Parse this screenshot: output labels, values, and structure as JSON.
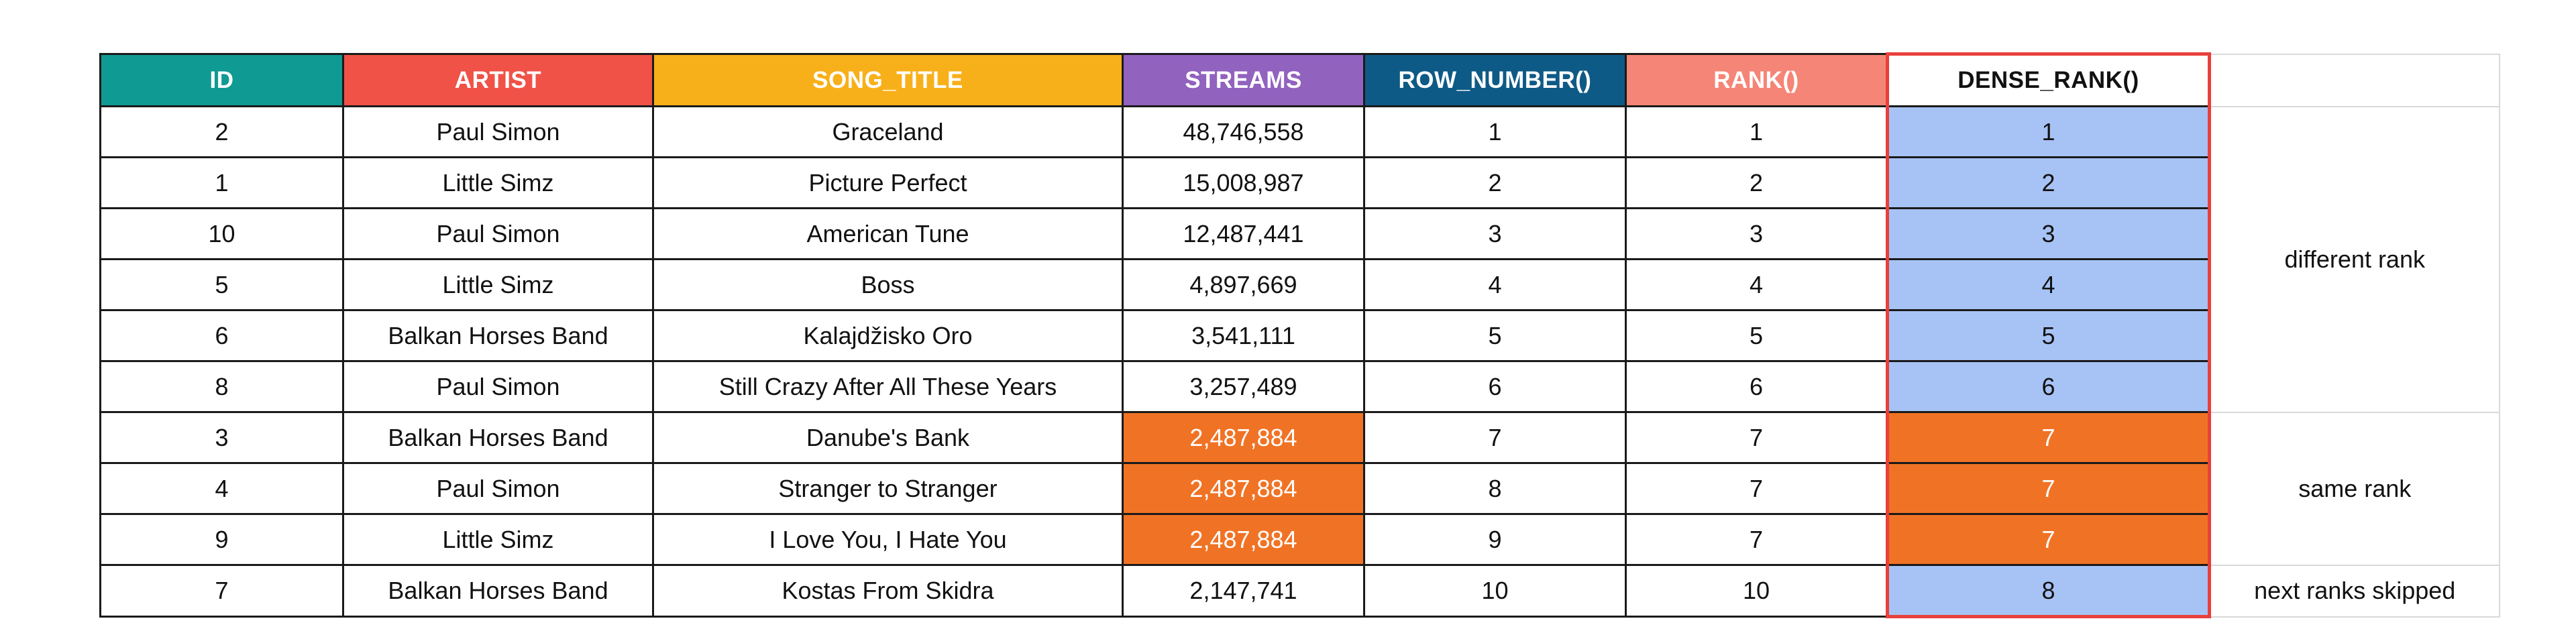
{
  "headers": {
    "id": "ID",
    "artist": "ARTIST",
    "song_title": "SONG_TITLE",
    "streams": "STREAMS",
    "row_number": "ROW_NUMBER()",
    "rank": "RANK()",
    "dense_rank": "DENSE_RANK()"
  },
  "rows": [
    {
      "id": "2",
      "artist": "Paul Simon",
      "song": "Graceland",
      "streams": "48,746,558",
      "row_number": "1",
      "rank": "1",
      "dense_rank": "1"
    },
    {
      "id": "1",
      "artist": "Little Simz",
      "song": "Picture Perfect",
      "streams": "15,008,987",
      "row_number": "2",
      "rank": "2",
      "dense_rank": "2"
    },
    {
      "id": "10",
      "artist": "Paul Simon",
      "song": "American Tune",
      "streams": "12,487,441",
      "row_number": "3",
      "rank": "3",
      "dense_rank": "3"
    },
    {
      "id": "5",
      "artist": "Little Simz",
      "song": "Boss",
      "streams": "4,897,669",
      "row_number": "4",
      "rank": "4",
      "dense_rank": "4"
    },
    {
      "id": "6",
      "artist": "Balkan Horses Band",
      "song": "Kalajdžisko Oro",
      "streams": "3,541,111",
      "row_number": "5",
      "rank": "5",
      "dense_rank": "5"
    },
    {
      "id": "8",
      "artist": "Paul Simon",
      "song": "Still Crazy After All These Years",
      "streams": "3,257,489",
      "row_number": "6",
      "rank": "6",
      "dense_rank": "6"
    },
    {
      "id": "3",
      "artist": "Balkan Horses Band",
      "song": "Danube's Bank",
      "streams": "2,487,884",
      "row_number": "7",
      "rank": "7",
      "dense_rank": "7"
    },
    {
      "id": "4",
      "artist": "Paul Simon",
      "song": "Stranger to Stranger",
      "streams": "2,487,884",
      "row_number": "8",
      "rank": "7",
      "dense_rank": "7"
    },
    {
      "id": "9",
      "artist": "Little Simz",
      "song": "I Love You, I Hate You",
      "streams": "2,487,884",
      "row_number": "9",
      "rank": "7",
      "dense_rank": "7"
    },
    {
      "id": "7",
      "artist": "Balkan Horses Band",
      "song": "Kostas From Skidra",
      "streams": "2,147,741",
      "row_number": "10",
      "rank": "10",
      "dense_rank": "8"
    }
  ],
  "annotations": {
    "different_rank": "different rank",
    "same_rank": "same rank",
    "next_ranks_skipped": "next ranks skipped"
  },
  "colors": {
    "id_header": "#0f9a94",
    "artist_header": "#f05248",
    "song_header": "#f8b01a",
    "streams_header": "#9262bf",
    "row_number_header": "#0e5a86",
    "rank_header": "#f58576",
    "dense_rank_fill": "#a7c3f5",
    "same_value_fill": "#f07325",
    "outline_red": "#e9403b"
  }
}
